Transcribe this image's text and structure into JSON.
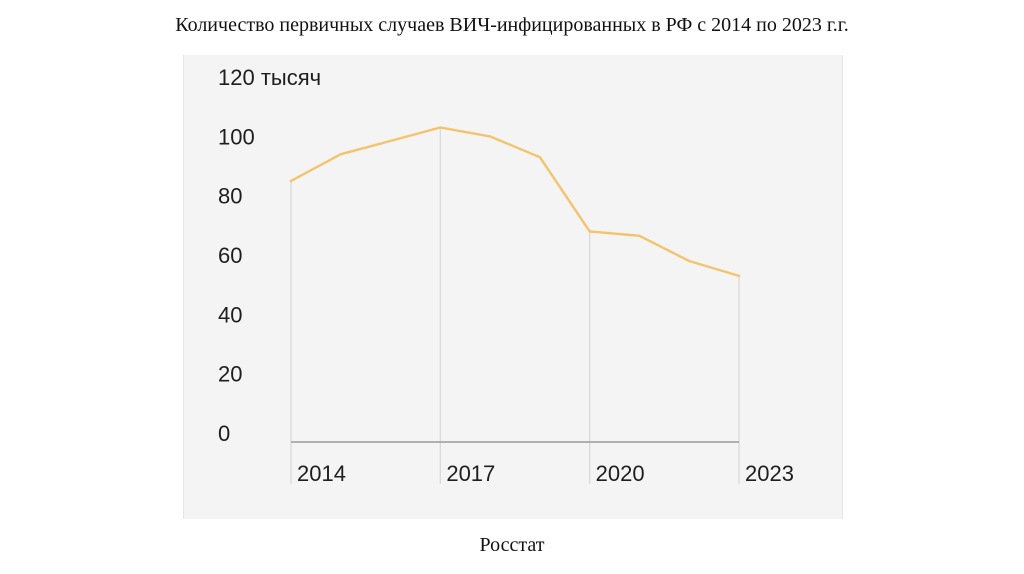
{
  "slide": {
    "title": "Количество первичных случаев ВИЧ-инфицированных в РФ с 2014 по 2023 г.г.",
    "source": "Росстат"
  },
  "chart_data": {
    "type": "line",
    "x": [
      2014,
      2015,
      2016,
      2017,
      2018,
      2019,
      2020,
      2021,
      2022,
      2023
    ],
    "values": [
      88,
      97,
      101.5,
      106,
      103,
      96,
      71,
      69.5,
      61,
      56
    ],
    "x_tick_labels": [
      "2014",
      "2017",
      "2020",
      "2023"
    ],
    "y_tick_labels": [
      "0",
      "20",
      "40",
      "60",
      "80",
      "100",
      "120 тысяч"
    ],
    "ylim": [
      0,
      120
    ],
    "line_color": "#f2c46e",
    "axis_color": "#9a9a9a",
    "gridline_color": "#d8d8d8",
    "grid": "vertical at labeled years"
  }
}
